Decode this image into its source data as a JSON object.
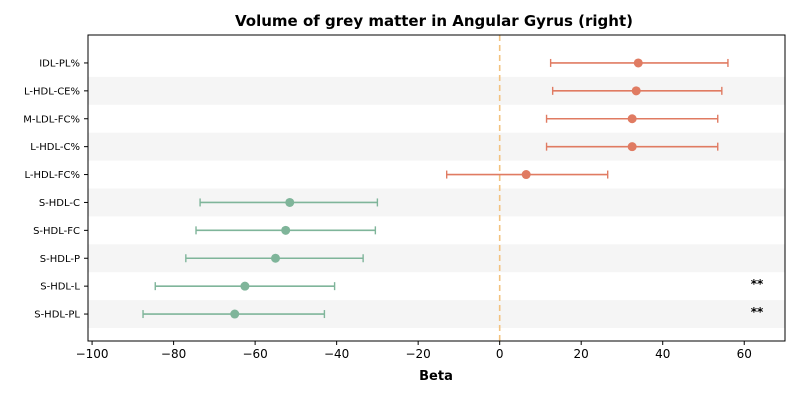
{
  "chart_data": {
    "type": "forest",
    "title": "Volume of grey matter in Angular Gyrus (right)",
    "xlabel": "Beta",
    "ylabel": "",
    "xlim": [
      -101,
      70
    ],
    "xticks": [
      -100,
      -80,
      -60,
      -40,
      -20,
      0,
      20,
      40,
      60
    ],
    "xtick_labels": [
      "−100",
      "−80",
      "−60",
      "−40",
      "−20",
      "0",
      "20",
      "40",
      "60"
    ],
    "reference_line": 0,
    "grid": false,
    "colors": {
      "positive": "#e07b62",
      "negative": "#7fb59a",
      "reference": "#f2c27f",
      "band": "#f5f5f5"
    },
    "rows": [
      {
        "label": "IDL-PL%",
        "beta": 34.0,
        "ci_low": 12.5,
        "ci_high": 56.0,
        "annotation": ""
      },
      {
        "label": "L-HDL-CE%",
        "beta": 33.5,
        "ci_low": 13.0,
        "ci_high": 54.5,
        "annotation": ""
      },
      {
        "label": "M-LDL-FC%",
        "beta": 32.5,
        "ci_low": 11.5,
        "ci_high": 53.5,
        "annotation": ""
      },
      {
        "label": "L-HDL-C%",
        "beta": 32.5,
        "ci_low": 11.5,
        "ci_high": 53.5,
        "annotation": ""
      },
      {
        "label": "L-HDL-FC%",
        "beta": 6.5,
        "ci_low": -13.0,
        "ci_high": 26.5,
        "annotation": ""
      },
      {
        "label": "S-HDL-C",
        "beta": -51.5,
        "ci_low": -73.5,
        "ci_high": -30.0,
        "annotation": ""
      },
      {
        "label": "S-HDL-FC",
        "beta": -52.5,
        "ci_low": -74.5,
        "ci_high": -30.5,
        "annotation": ""
      },
      {
        "label": "S-HDL-P",
        "beta": -55.0,
        "ci_low": -77.0,
        "ci_high": -33.5,
        "annotation": ""
      },
      {
        "label": "S-HDL-L",
        "beta": -62.5,
        "ci_low": -84.5,
        "ci_high": -40.5,
        "annotation": "**"
      },
      {
        "label": "S-HDL-PL",
        "beta": -65.0,
        "ci_low": -87.5,
        "ci_high": -43.0,
        "annotation": "**"
      }
    ]
  }
}
